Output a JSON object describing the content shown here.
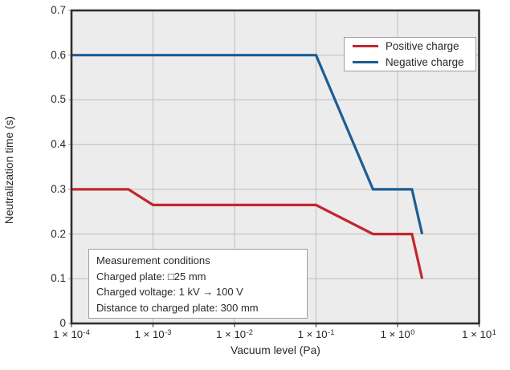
{
  "colors": {
    "plot_bg": "#ececec",
    "grid": "#bdbdbd",
    "border": "#342e2a",
    "x_tick_mark": "#3d3733",
    "y_tick_mark": "#9a9a9a",
    "text": "#2c2826",
    "box_border": "#9e9e9e",
    "positive": "#c1272d",
    "negative": "#1c5d94"
  },
  "chart_data": {
    "type": "line",
    "title": "",
    "xlabel": "Vacuum level (Pa)",
    "ylabel": "Neutralization time (s)",
    "x_scale": "log",
    "xlim": [
      0.0001,
      10
    ],
    "ylim": [
      0,
      0.7
    ],
    "grid": true,
    "legend_position": "top-right",
    "x_ticks": [
      {
        "base": "1 × 10",
        "exp": "-4",
        "value": 0.0001
      },
      {
        "base": "1 × 10",
        "exp": "-3",
        "value": 0.001
      },
      {
        "base": "1 × 10",
        "exp": "-2",
        "value": 0.01
      },
      {
        "base": "1 × 10",
        "exp": "-1",
        "value": 0.1
      },
      {
        "base": "1 × 10",
        "exp": "0",
        "value": 1
      },
      {
        "base": "1 × 10",
        "exp": "1",
        "value": 10
      }
    ],
    "y_ticks": [
      {
        "label": "0.7",
        "value": 0.7
      },
      {
        "label": "0.6",
        "value": 0.6
      },
      {
        "label": "0.5",
        "value": 0.5
      },
      {
        "label": "0.4",
        "value": 0.4
      },
      {
        "label": "0.3",
        "value": 0.3
      },
      {
        "label": "0.2",
        "value": 0.2
      },
      {
        "label": "0.1",
        "value": 0.1
      },
      {
        "label": "0",
        "value": 0
      }
    ],
    "series": [
      {
        "name": "Positive charge",
        "color": "#c1272d",
        "points": [
          [
            0.0001,
            0.3
          ],
          [
            0.0005,
            0.3
          ],
          [
            0.001,
            0.265
          ],
          [
            0.1,
            0.265
          ],
          [
            0.5,
            0.2
          ],
          [
            1.5,
            0.2
          ],
          [
            2.0,
            0.1
          ]
        ]
      },
      {
        "name": "Negative charge",
        "color": "#1c5d94",
        "points": [
          [
            0.0001,
            0.6
          ],
          [
            0.1,
            0.6
          ],
          [
            0.5,
            0.3
          ],
          [
            1.5,
            0.3
          ],
          [
            2.0,
            0.2
          ]
        ]
      }
    ],
    "annotation_box": {
      "lines": [
        "Measurement conditions",
        "Charged plate: □25 mm",
        "Charged voltage: 1 kV → 100 V",
        "Distance to charged plate: 300 mm"
      ]
    }
  }
}
